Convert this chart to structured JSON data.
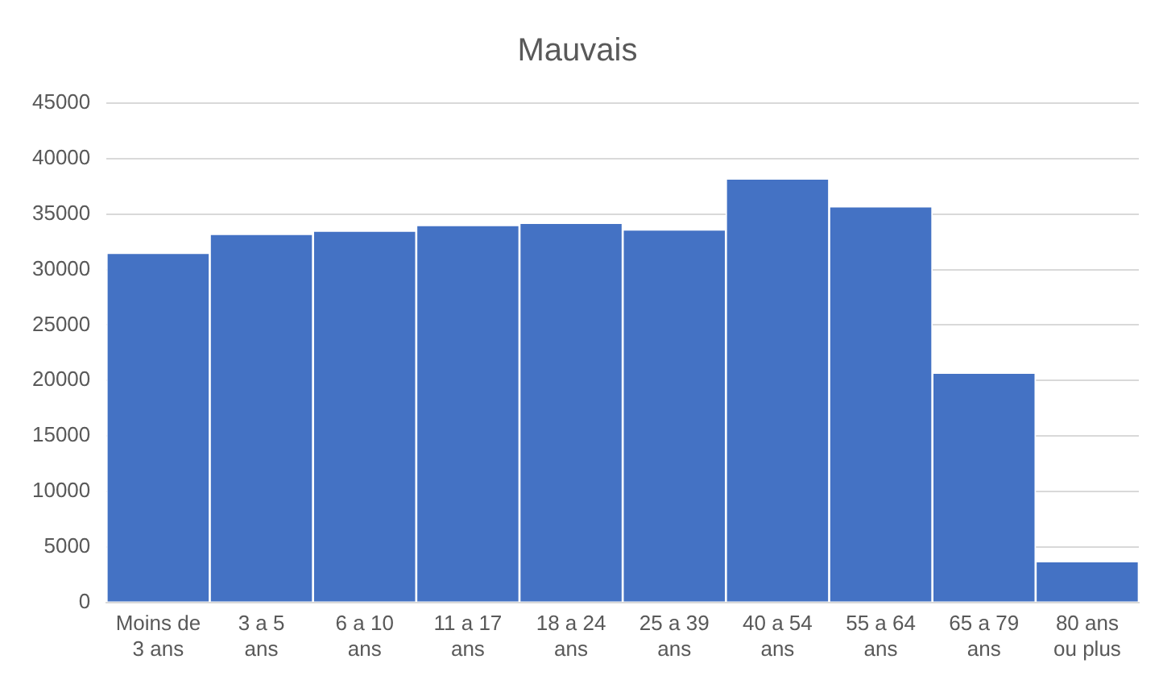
{
  "chart_data": {
    "type": "bar",
    "title": "Mauvais",
    "categories": [
      "Moins de 3 ans",
      "3 a 5 ans",
      "6 a 10 ans",
      "11 a 17 ans",
      "18 a 24 ans",
      "25 a 39 ans",
      "40 a 54 ans",
      "55 a 64 ans",
      "65 a 79 ans",
      "80 ans ou plus"
    ],
    "values": [
      31500,
      33200,
      33500,
      34000,
      34200,
      33600,
      38200,
      35700,
      20700,
      3700
    ],
    "color": "#4472c4",
    "ylim": [
      0,
      45000
    ],
    "yticks": [
      0,
      5000,
      10000,
      15000,
      20000,
      25000,
      30000,
      35000,
      40000,
      45000
    ],
    "grid": "y",
    "legend": false
  }
}
